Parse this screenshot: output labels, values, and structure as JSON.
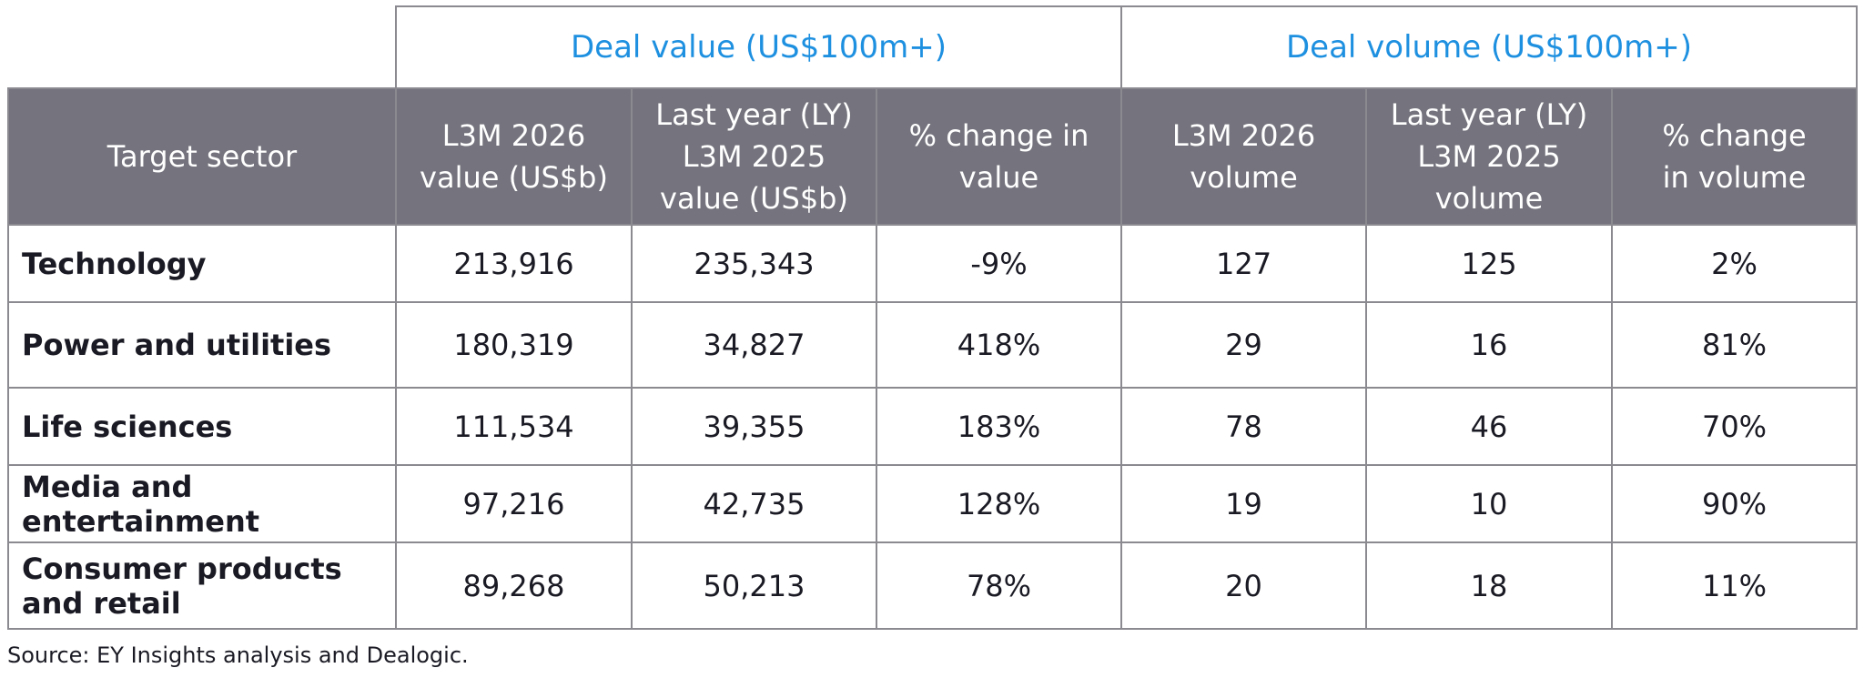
{
  "chart_data": {
    "type": "table",
    "column_groups": [
      {
        "label": "Deal value (US$100m+)",
        "span": 3
      },
      {
        "label": "Deal volume (US$100m+)",
        "span": 3
      }
    ],
    "headers": [
      "Target sector",
      "L3M 2026\nvalue (US$b)",
      "Last year (LY)\nL3M 2025\nvalue (US$b)",
      "% change in\nvalue",
      "L3M 2026\nvolume",
      "Last year (LY)\nL3M 2025\nvolume",
      "% change\nin volume"
    ],
    "rows": [
      {
        "sector": "Technology",
        "cells": [
          "213,916",
          "235,343",
          "-9%",
          "127",
          "125",
          "2%"
        ]
      },
      {
        "sector": "Power and utilities",
        "cells": [
          "180,319",
          "34,827",
          "418%",
          "29",
          "16",
          "81%"
        ]
      },
      {
        "sector": "Life sciences",
        "cells": [
          "111,534",
          "39,355",
          "183%",
          "78",
          "46",
          "70%"
        ]
      },
      {
        "sector": "Media and entertainment",
        "cells": [
          "97,216",
          "42,735",
          "128%",
          "19",
          "10",
          "90%"
        ]
      },
      {
        "sector": "Consumer products\nand retail",
        "cells": [
          "89,268",
          "50,213",
          "78%",
          "20",
          "18",
          "11%"
        ]
      }
    ],
    "source": "Source: EY Insights analysis and Dealogic.",
    "colors": {
      "group_header_text": "#1e90e0",
      "column_header_bg": "#75747e",
      "border": "#8a8a90"
    }
  }
}
